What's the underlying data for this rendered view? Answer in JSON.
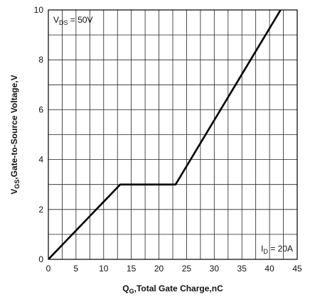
{
  "chart_data": {
    "type": "line",
    "xlabel": {
      "main": "Q",
      "sub": "G",
      "rest": ",Total Gate Charge,nC"
    },
    "ylabel": {
      "main": "V",
      "sub": "GS",
      "rest": ",Gate-to-Source Voltage,V"
    },
    "xlim": [
      0,
      45
    ],
    "ylim": [
      0,
      10
    ],
    "xticks": [
      0,
      5,
      10,
      15,
      20,
      25,
      30,
      35,
      40,
      45
    ],
    "yticks": [
      0,
      2,
      4,
      6,
      8,
      10
    ],
    "xminor": 2.5,
    "yminor": 1,
    "grid": true,
    "series": [
      {
        "x": [
          0,
          13,
          23,
          42
        ],
        "y": [
          0,
          3,
          3,
          10
        ]
      }
    ],
    "annotations": [
      {
        "id": "vds",
        "main": "V",
        "sub": "DS",
        "rest": " = 50V",
        "placement": "top-left"
      },
      {
        "id": "id",
        "main": "I",
        "sub": "D",
        "rest": " = 20A",
        "placement": "bottom-right"
      }
    ]
  }
}
